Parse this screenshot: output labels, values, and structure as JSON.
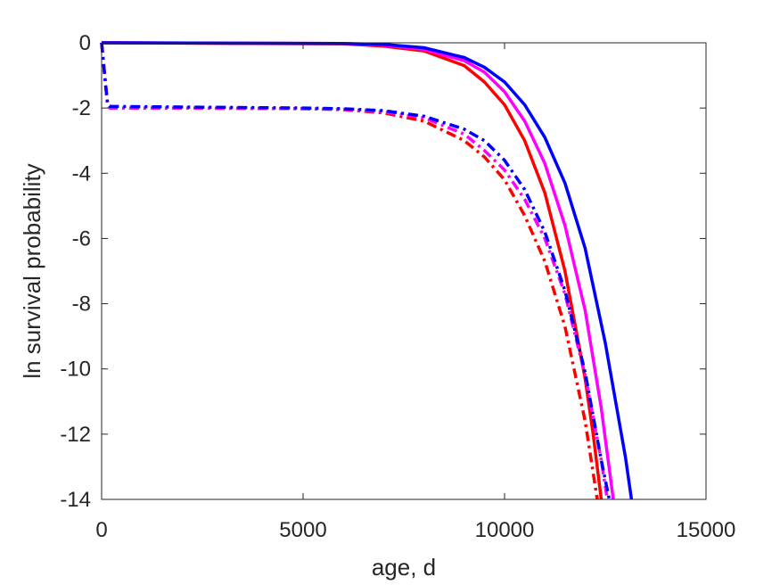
{
  "chart_data": {
    "type": "line",
    "xlabel": "age, d",
    "ylabel": "ln survival probability",
    "xlim": [
      0,
      15000
    ],
    "ylim": [
      -14,
      0
    ],
    "x_ticks": [
      "0",
      "5000",
      "10000",
      "15000"
    ],
    "y_ticks": [
      "0",
      "-2",
      "-4",
      "-6",
      "-8",
      "-10",
      "-12",
      "-14"
    ],
    "grid": false,
    "legend": "none",
    "series": [
      {
        "color": "#ff0000",
        "style": "solid",
        "points": [
          [
            0,
            0
          ],
          [
            6000,
            -0.03
          ],
          [
            7000,
            -0.1
          ],
          [
            8000,
            -0.25
          ],
          [
            9000,
            -0.7
          ],
          [
            9500,
            -1.2
          ],
          [
            10000,
            -1.9
          ],
          [
            10500,
            -3.0
          ],
          [
            11000,
            -4.6
          ],
          [
            11500,
            -7.0
          ],
          [
            12000,
            -10.3
          ],
          [
            12200,
            -12.0
          ],
          [
            12400,
            -14.0
          ]
        ]
      },
      {
        "color": "#ff00ff",
        "style": "solid",
        "points": [
          [
            0,
            0
          ],
          [
            6000,
            -0.02
          ],
          [
            7000,
            -0.07
          ],
          [
            8000,
            -0.2
          ],
          [
            9000,
            -0.55
          ],
          [
            9500,
            -0.9
          ],
          [
            10000,
            -1.5
          ],
          [
            10500,
            -2.4
          ],
          [
            11000,
            -3.7
          ],
          [
            11500,
            -5.6
          ],
          [
            12000,
            -8.2
          ],
          [
            12400,
            -11.2
          ],
          [
            12700,
            -14.0
          ]
        ]
      },
      {
        "color": "#0000ff",
        "style": "solid",
        "points": [
          [
            0,
            0
          ],
          [
            6000,
            -0.02
          ],
          [
            7000,
            -0.05
          ],
          [
            8000,
            -0.15
          ],
          [
            9000,
            -0.45
          ],
          [
            9500,
            -0.75
          ],
          [
            10000,
            -1.2
          ],
          [
            10500,
            -1.9
          ],
          [
            11000,
            -2.9
          ],
          [
            11500,
            -4.3
          ],
          [
            12000,
            -6.3
          ],
          [
            12500,
            -9.2
          ],
          [
            13000,
            -12.7
          ],
          [
            13150,
            -14.0
          ]
        ]
      },
      {
        "color": "#ff0000",
        "style": "dashdot",
        "points": [
          [
            0,
            0
          ],
          [
            100,
            -1.3
          ],
          [
            150,
            -1.9
          ],
          [
            200,
            -2.0
          ],
          [
            2000,
            -2.0
          ],
          [
            5000,
            -2.02
          ],
          [
            6000,
            -2.05
          ],
          [
            7000,
            -2.15
          ],
          [
            8000,
            -2.4
          ],
          [
            9000,
            -3.0
          ],
          [
            9500,
            -3.5
          ],
          [
            10000,
            -4.2
          ],
          [
            10500,
            -5.3
          ],
          [
            11000,
            -6.7
          ],
          [
            11500,
            -8.7
          ],
          [
            12000,
            -11.6
          ],
          [
            12300,
            -14.0
          ]
        ]
      },
      {
        "color": "#ff00ff",
        "style": "dashdot",
        "points": [
          [
            0,
            0
          ],
          [
            100,
            -1.3
          ],
          [
            150,
            -1.9
          ],
          [
            200,
            -2.0
          ],
          [
            2000,
            -2.0
          ],
          [
            5000,
            -2.02
          ],
          [
            6000,
            -2.04
          ],
          [
            7000,
            -2.12
          ],
          [
            8000,
            -2.3
          ],
          [
            9000,
            -2.8
          ],
          [
            9500,
            -3.3
          ],
          [
            10000,
            -3.9
          ],
          [
            10500,
            -4.8
          ],
          [
            11000,
            -6.0
          ],
          [
            11500,
            -7.7
          ],
          [
            12000,
            -10.2
          ],
          [
            12400,
            -12.8
          ],
          [
            12550,
            -14.0
          ]
        ]
      },
      {
        "color": "#0000ff",
        "style": "dashdot",
        "points": [
          [
            0,
            0
          ],
          [
            100,
            -1.3
          ],
          [
            150,
            -1.9
          ],
          [
            200,
            -1.95
          ],
          [
            2000,
            -1.97
          ],
          [
            5000,
            -2.0
          ],
          [
            6000,
            -2.02
          ],
          [
            7000,
            -2.08
          ],
          [
            8000,
            -2.25
          ],
          [
            9000,
            -2.65
          ],
          [
            9500,
            -3.0
          ],
          [
            10000,
            -3.6
          ],
          [
            10500,
            -4.5
          ],
          [
            11000,
            -5.8
          ],
          [
            11500,
            -7.6
          ],
          [
            12000,
            -10.1
          ],
          [
            12400,
            -12.8
          ],
          [
            12600,
            -14.0
          ]
        ]
      }
    ]
  }
}
